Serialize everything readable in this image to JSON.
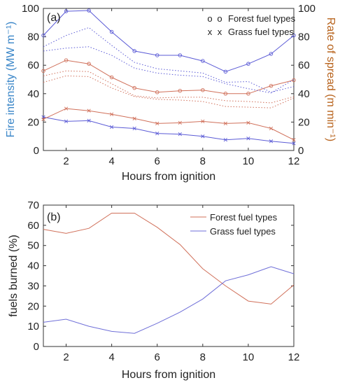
{
  "chart_data": [
    {
      "type": "line",
      "panel_label": "(a)",
      "xlabel": "Hours from ignition",
      "ylabel": "Fire intensity (MW m⁻¹)",
      "y2label": "Rate of spread (m min⁻¹)",
      "xlim": [
        1,
        12
      ],
      "ylim": [
        0,
        100
      ],
      "y2lim": [
        0,
        100
      ],
      "x": [
        1,
        2,
        3,
        4,
        5,
        6,
        7,
        8,
        9,
        10,
        11,
        12
      ],
      "xticks": [
        "2",
        "4",
        "6",
        "8",
        "10",
        "12"
      ],
      "yticks": [
        "0",
        "20",
        "40",
        "60",
        "80",
        "100"
      ],
      "y2ticks": [
        "0",
        "20",
        "40",
        "60",
        "80",
        "100"
      ],
      "legend": [
        {
          "marker": "o",
          "marker2": "o",
          "label": "Forest fuel types"
        },
        {
          "marker": "x",
          "marker2": "x",
          "label": "Grass fuel types"
        }
      ],
      "legend_position": "top-right",
      "colors": {
        "intensity": "#5b5bd6",
        "spread": "#d0705a",
        "left_axis": "#3a86c8",
        "right_axis": "#b8641e"
      },
      "series": [
        {
          "axis": "left",
          "style": "line",
          "marker": "o",
          "values": [
            81,
            98,
            98.5,
            83.5,
            70,
            67,
            67,
            63,
            55.5,
            61,
            68,
            81
          ]
        },
        {
          "axis": "right",
          "style": "line",
          "marker": "o",
          "values": [
            56,
            63.5,
            61,
            51.5,
            44,
            41,
            42,
            42.5,
            40,
            40,
            45.5,
            49.5
          ]
        },
        {
          "axis": "left",
          "style": "line",
          "marker": "x",
          "values": [
            23.5,
            20.5,
            21,
            16.5,
            15.5,
            12,
            11.5,
            10,
            7.5,
            8.5,
            6.5,
            5
          ]
        },
        {
          "axis": "right",
          "style": "line",
          "marker": "x",
          "values": [
            22,
            29.5,
            28,
            25.5,
            22.5,
            19,
            19.5,
            20.5,
            19,
            19.5,
            15.5,
            7.5
          ]
        },
        {
          "axis": "left",
          "style": "dotted",
          "values": [
            73,
            81,
            86.5,
            74,
            62,
            57.5,
            56,
            54.5,
            48,
            48.5,
            41,
            45
          ]
        },
        {
          "axis": "left",
          "style": "dotted",
          "values": [
            70,
            72,
            73,
            67,
            58,
            54.5,
            53,
            52,
            47,
            43.5,
            40.5,
            50
          ]
        },
        {
          "axis": "right",
          "style": "dotted",
          "values": [
            52.5,
            56,
            55.5,
            47,
            38.5,
            37,
            37.5,
            37.5,
            35,
            34.5,
            33.5,
            38
          ]
        },
        {
          "axis": "right",
          "style": "dotted",
          "values": [
            48,
            52.5,
            52,
            44,
            38,
            36,
            35.5,
            34.5,
            31,
            30.5,
            30,
            37
          ]
        }
      ]
    },
    {
      "type": "line",
      "panel_label": "(b)",
      "xlabel": "Hours from ignition",
      "ylabel": "fuels burned (%)",
      "xlim": [
        1,
        12
      ],
      "ylim": [
        0,
        70
      ],
      "x": [
        1,
        2,
        3,
        4,
        5,
        6,
        7,
        8,
        9,
        10,
        11,
        12
      ],
      "xticks": [
        "2",
        "4",
        "6",
        "8",
        "10",
        "12"
      ],
      "yticks": [
        "0",
        "10",
        "20",
        "30",
        "40",
        "50",
        "60",
        "70"
      ],
      "legend_position": "top-right",
      "series": [
        {
          "name": "Forest fuel types",
          "color": "#d0705a",
          "values": [
            58,
            56,
            58.5,
            66,
            66,
            59,
            50.5,
            38.5,
            30,
            22.5,
            21,
            30.5
          ]
        },
        {
          "name": "Grass fuel types",
          "color": "#6f6fd8",
          "values": [
            12,
            13.5,
            10,
            7.5,
            6.5,
            11.5,
            17,
            23.5,
            32.5,
            35.5,
            39.5,
            36
          ]
        }
      ]
    }
  ]
}
